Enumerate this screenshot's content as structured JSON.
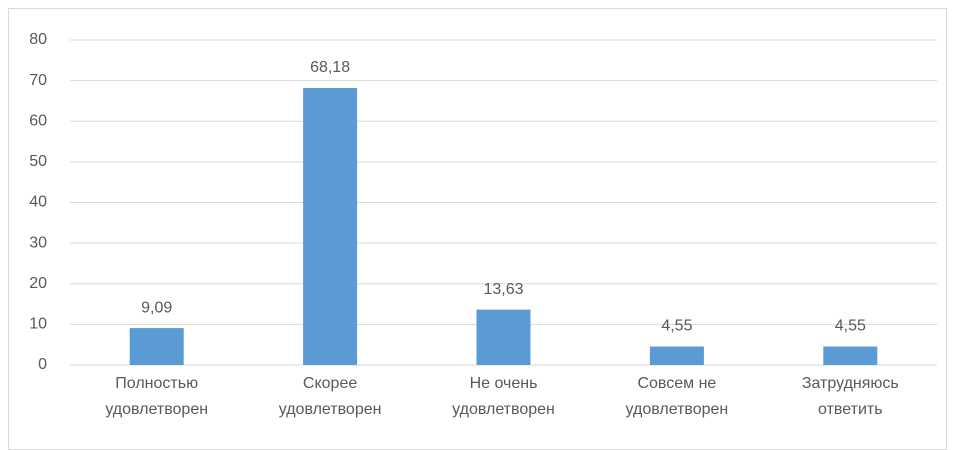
{
  "chart_data": {
    "type": "bar",
    "categories": [
      [
        "Полностью",
        "удовлетворен"
      ],
      [
        "Скорее",
        "удовлетворен"
      ],
      [
        "Не очень",
        "удовлетворен"
      ],
      [
        "Совсем не",
        "удовлетворен"
      ],
      [
        "Затрудняюсь",
        "ответить"
      ]
    ],
    "values": [
      9.09,
      68.18,
      13.63,
      4.55,
      4.55
    ],
    "value_labels": [
      "9,09",
      "68,18",
      "13,63",
      "4,55",
      "4,55"
    ],
    "color": "#5b9bd5",
    "ylim": [
      0,
      80
    ],
    "yticks": [
      0,
      10,
      20,
      30,
      40,
      50,
      60,
      70,
      80
    ],
    "grid": true
  }
}
